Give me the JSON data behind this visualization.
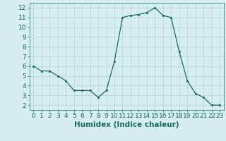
{
  "x": [
    0,
    1,
    2,
    3,
    4,
    5,
    6,
    7,
    8,
    9,
    10,
    11,
    12,
    13,
    14,
    15,
    16,
    17,
    18,
    19,
    20,
    21,
    22,
    23
  ],
  "y": [
    6.0,
    5.5,
    5.5,
    5.0,
    4.5,
    3.5,
    3.5,
    3.5,
    2.8,
    3.5,
    6.5,
    11.0,
    11.2,
    11.3,
    11.5,
    12.0,
    11.2,
    11.0,
    7.5,
    4.5,
    3.2,
    2.8,
    2.0,
    2.0
  ],
  "xlabel": "Humidex (Indice chaleur)",
  "ylim": [
    1.5,
    12.5
  ],
  "xlim": [
    -0.5,
    23.5
  ],
  "yticks": [
    2,
    3,
    4,
    5,
    6,
    7,
    8,
    9,
    10,
    11,
    12
  ],
  "xticks": [
    0,
    1,
    2,
    3,
    4,
    5,
    6,
    7,
    8,
    9,
    10,
    11,
    12,
    13,
    14,
    15,
    16,
    17,
    18,
    19,
    20,
    21,
    22,
    23
  ],
  "line_color": "#1a6b5a",
  "marker": "s",
  "marker_size": 2.0,
  "bg_color": "#d6eeee",
  "grid_color": "#b8d8d8",
  "xlabel_fontsize": 7.5,
  "tick_fontsize": 6.5
}
